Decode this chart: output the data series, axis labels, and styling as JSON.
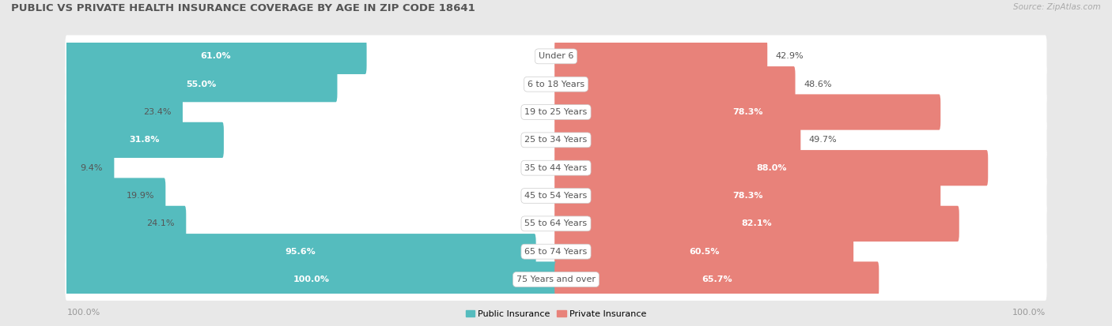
{
  "title": "PUBLIC VS PRIVATE HEALTH INSURANCE COVERAGE BY AGE IN ZIP CODE 18641",
  "source": "Source: ZipAtlas.com",
  "categories": [
    "Under 6",
    "6 to 18 Years",
    "19 to 25 Years",
    "25 to 34 Years",
    "35 to 44 Years",
    "45 to 54 Years",
    "55 to 64 Years",
    "65 to 74 Years",
    "75 Years and over"
  ],
  "public_values": [
    61.0,
    55.0,
    23.4,
    31.8,
    9.4,
    19.9,
    24.1,
    95.6,
    100.0
  ],
  "private_values": [
    42.9,
    48.6,
    78.3,
    49.7,
    88.0,
    78.3,
    82.1,
    60.5,
    65.7
  ],
  "public_color": "#55bcbe",
  "private_color": "#e8827a",
  "bg_color": "#e8e8e8",
  "bar_bg_color": "#ffffff",
  "label_color_dark": "#555555",
  "title_color": "#555555",
  "axis_label_color": "#999999",
  "max_value": 100.0,
  "figsize": [
    14.06,
    4.13
  ],
  "dpi": 100,
  "pub_white_threshold": 25,
  "priv_white_threshold": 55
}
